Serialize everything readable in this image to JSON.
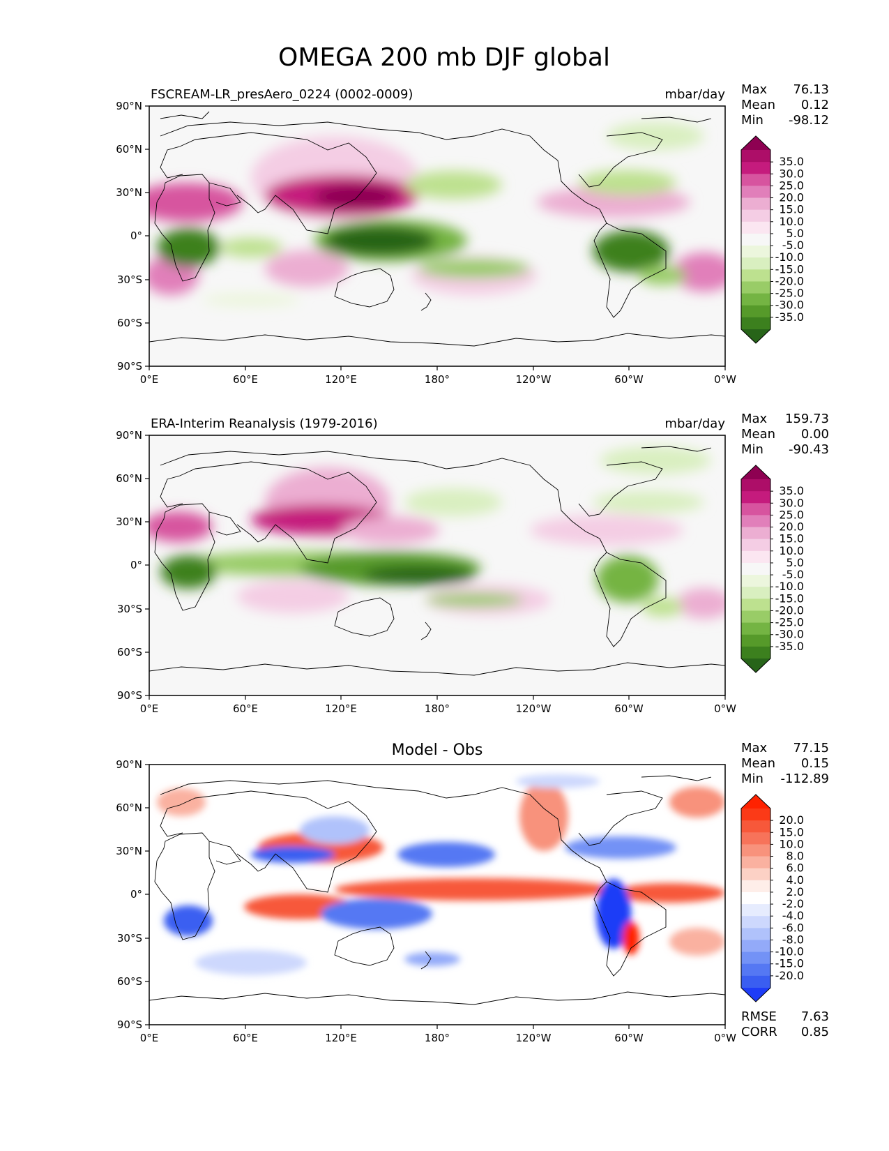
{
  "figure": {
    "title": "OMEGA 200 mb DJF global"
  },
  "chart_data": [
    {
      "type": "heatmap",
      "title": "FSCREAM-LR_presAero_0224 (0002-0009)",
      "units": "mbar/day",
      "stats": [
        {
          "label": "Max",
          "value": "76.13"
        },
        {
          "label": "Mean",
          "value": "0.12"
        },
        {
          "label": "Min",
          "value": "-98.12"
        }
      ],
      "lon_ticks": [
        "0°E",
        "60°E",
        "120°E",
        "180°",
        "120°W",
        "60°W",
        "0°W"
      ],
      "lat_ticks": [
        "90°N",
        "60°N",
        "30°N",
        "0°",
        "30°S",
        "60°S",
        "90°S"
      ],
      "colorbar": {
        "labels": [
          "35.0",
          "30.0",
          "25.0",
          "20.0",
          "15.0",
          "10.0",
          "5.0",
          "-5.0",
          "-10.0",
          "-15.0",
          "-20.0",
          "-25.0",
          "-30.0",
          "-35.0"
        ],
        "colors": [
          "#8e0152",
          "#ad0e68",
          "#c51b7d",
          "#d7549f",
          "#e17fba",
          "#ecaed2",
          "#f4cde4",
          "#fbe6f1",
          "#f7f7f7",
          "#ecf6dd",
          "#d9efc0",
          "#bde18f",
          "#99cc67",
          "#74b443",
          "#569a2a",
          "#3c801e",
          "#276419"
        ]
      }
    },
    {
      "type": "heatmap",
      "title": "ERA-Interim Reanalysis (1979-2016)",
      "units": "mbar/day",
      "stats": [
        {
          "label": "Max",
          "value": "159.73"
        },
        {
          "label": "Mean",
          "value": "0.00"
        },
        {
          "label": "Min",
          "value": "-90.43"
        }
      ],
      "lon_ticks": [
        "0°E",
        "60°E",
        "120°E",
        "180°",
        "120°W",
        "60°W",
        "0°W"
      ],
      "lat_ticks": [
        "90°N",
        "60°N",
        "30°N",
        "0°",
        "30°S",
        "60°S",
        "90°S"
      ],
      "colorbar": {
        "labels": [
          "35.0",
          "30.0",
          "25.0",
          "20.0",
          "15.0",
          "10.0",
          "5.0",
          "-5.0",
          "-10.0",
          "-15.0",
          "-20.0",
          "-25.0",
          "-30.0",
          "-35.0"
        ],
        "colors": [
          "#8e0152",
          "#ad0e68",
          "#c51b7d",
          "#d7549f",
          "#e17fba",
          "#ecaed2",
          "#f4cde4",
          "#fbe6f1",
          "#f7f7f7",
          "#ecf6dd",
          "#d9efc0",
          "#bde18f",
          "#99cc67",
          "#74b443",
          "#569a2a",
          "#3c801e",
          "#276419"
        ]
      }
    },
    {
      "type": "heatmap",
      "title": "Model - Obs",
      "units": "",
      "stats": [
        {
          "label": "Max",
          "value": "77.15"
        },
        {
          "label": "Mean",
          "value": "0.15"
        },
        {
          "label": "Min",
          "value": "-112.89"
        }
      ],
      "extra_stats": [
        {
          "label": "RMSE",
          "value": "7.63"
        },
        {
          "label": "CORR",
          "value": "0.85"
        }
      ],
      "lon_ticks": [
        "0°E",
        "60°E",
        "120°E",
        "180°",
        "120°W",
        "60°W",
        "0°W"
      ],
      "lat_ticks": [
        "90°N",
        "60°N",
        "30°N",
        "0°",
        "30°S",
        "60°S",
        "90°S"
      ],
      "colorbar": {
        "labels": [
          "20.0",
          "15.0",
          "10.0",
          "8.0",
          "6.0",
          "4.0",
          "2.0",
          "-2.0",
          "-4.0",
          "-6.0",
          "-8.0",
          "-10.0",
          "-15.0",
          "-20.0"
        ],
        "colors": [
          "#ff2200",
          "#fb3a17",
          "#f7583a",
          "#f7735a",
          "#f8927c",
          "#fab1a0",
          "#fcd1c5",
          "#feeee9",
          "#ffffff",
          "#e6ecfe",
          "#cdd8fd",
          "#b0c2fb",
          "#93aaf9",
          "#7392f6",
          "#5578f3",
          "#3a5ef1",
          "#1e3cf7"
        ]
      }
    }
  ]
}
